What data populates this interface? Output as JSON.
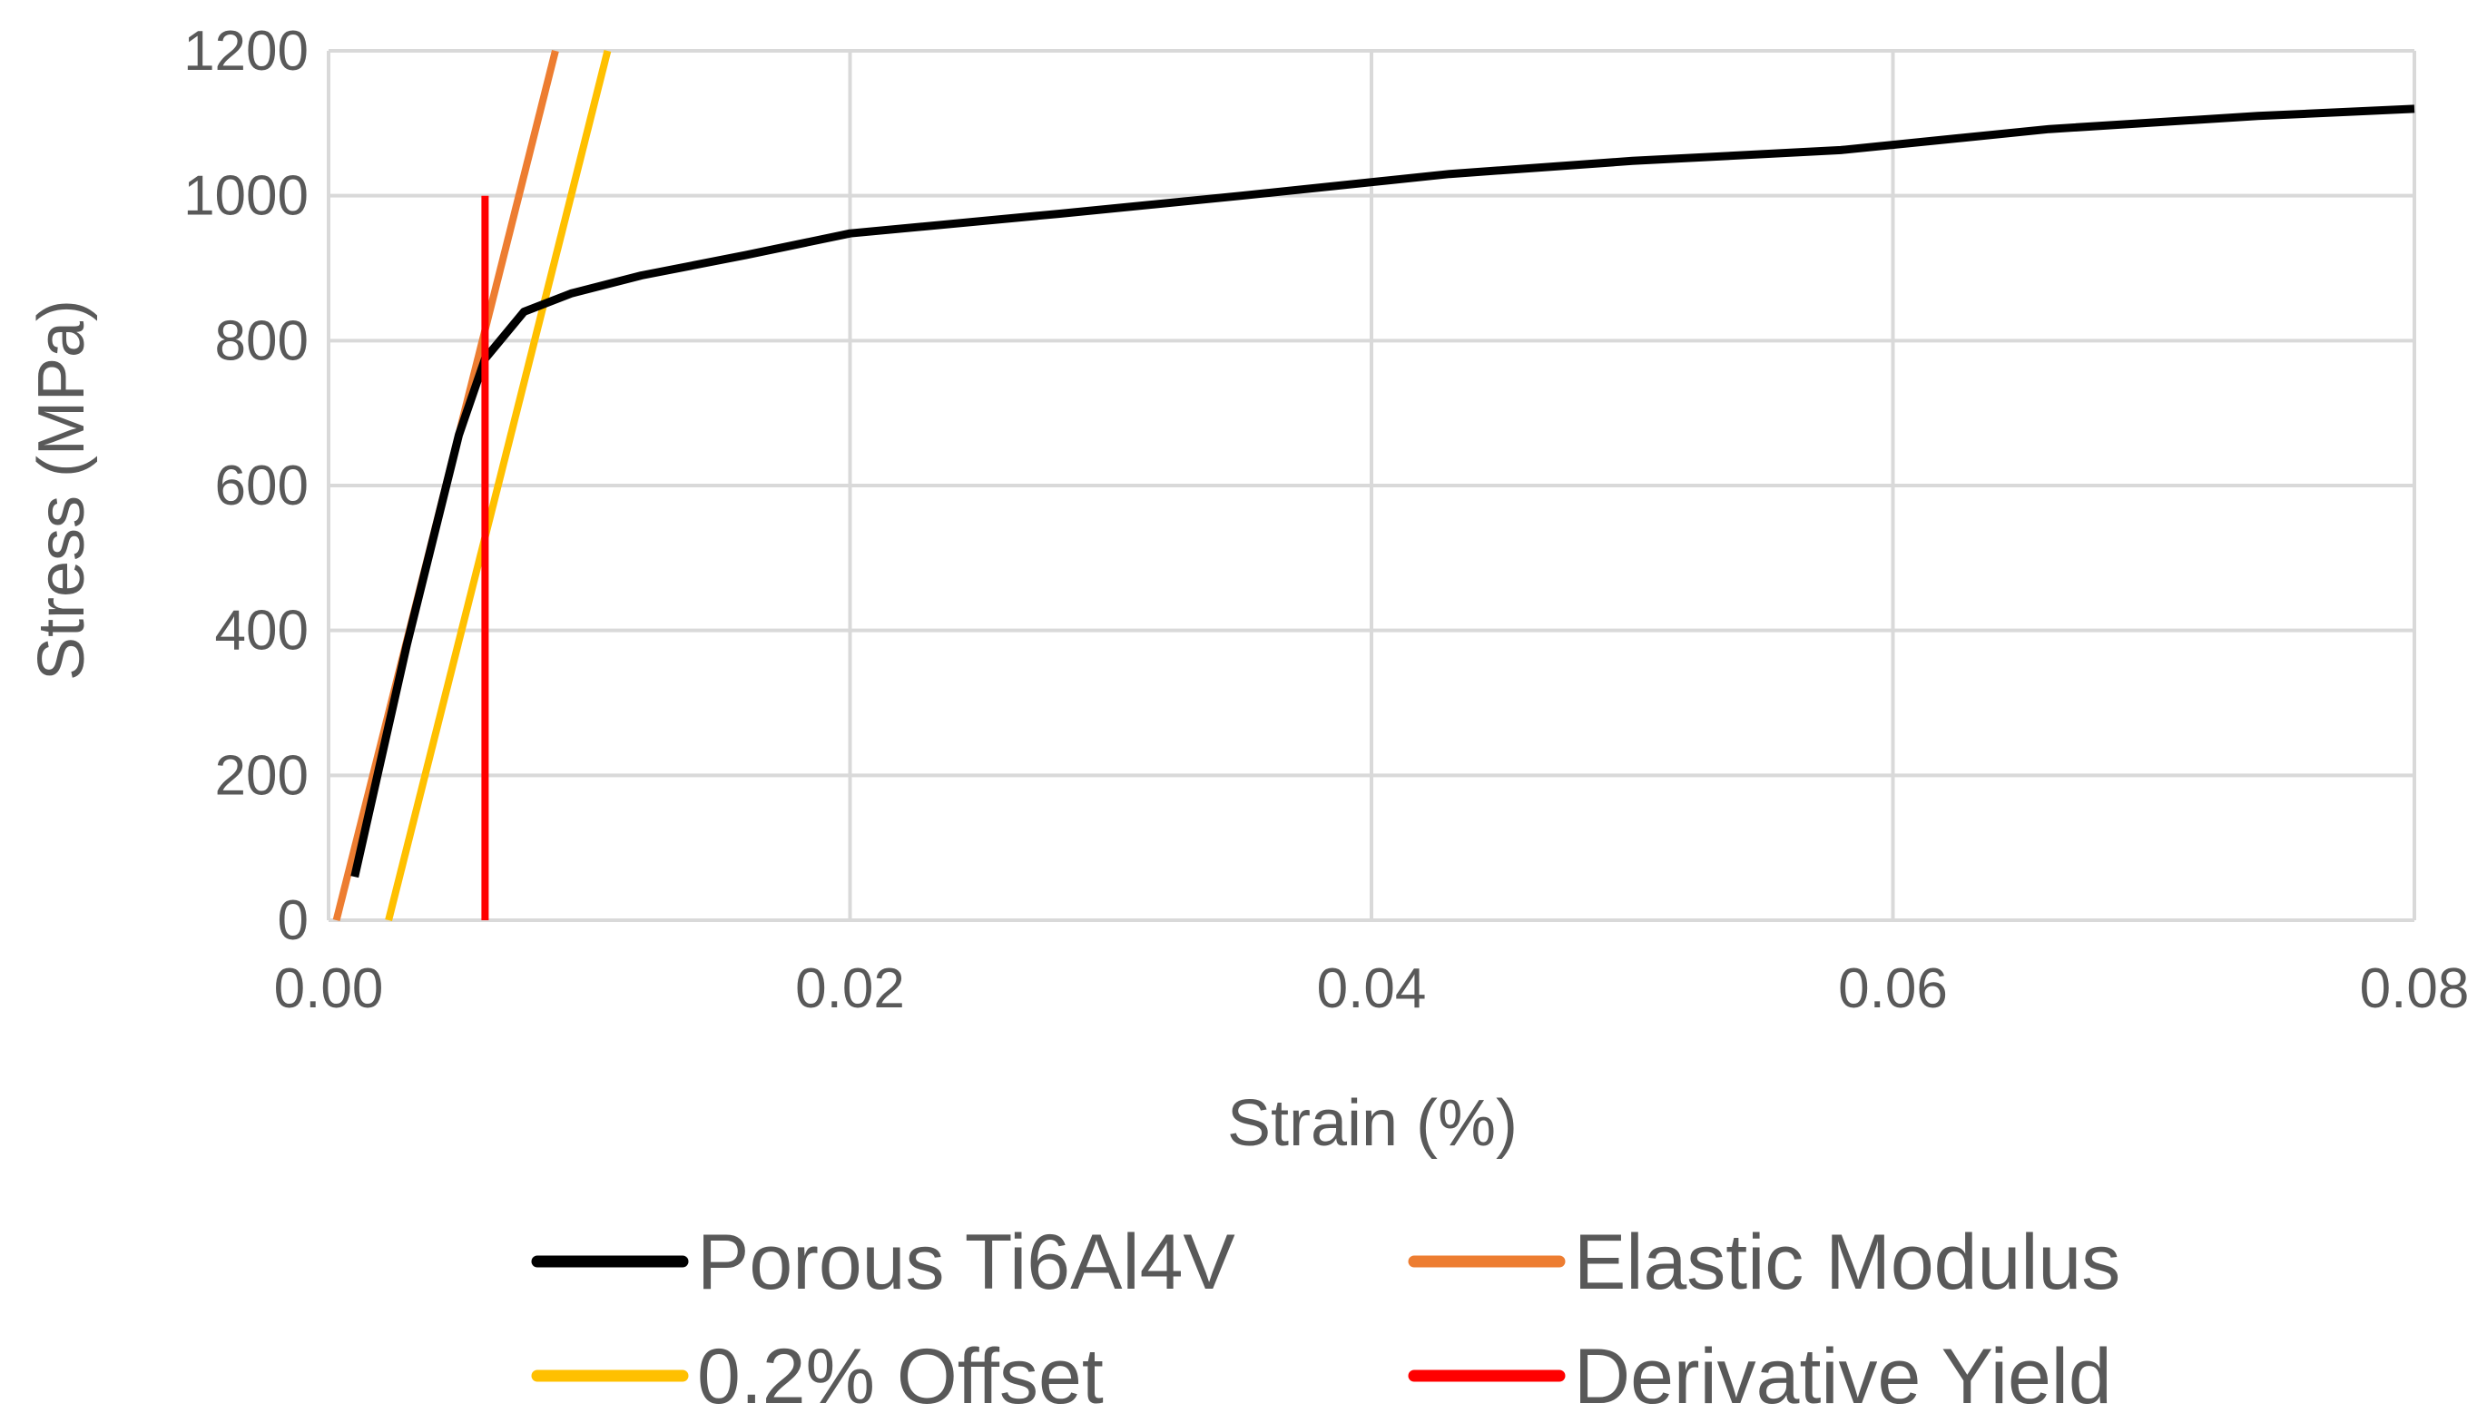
{
  "chart_data": {
    "type": "line",
    "title": "",
    "xlabel": "Strain (%)",
    "ylabel": "Stress (MPa)",
    "xlim": [
      0,
      0.08
    ],
    "ylim": [
      0,
      1200
    ],
    "x_ticks": [
      0,
      0.02,
      0.04,
      0.06,
      0.08
    ],
    "x_tick_labels": [
      "0.00",
      "0.02",
      "0.04",
      "0.06",
      "0.08"
    ],
    "y_ticks": [
      0,
      200,
      400,
      600,
      800,
      1000,
      1200
    ],
    "y_tick_labels": [
      "0",
      "200",
      "400",
      "600",
      "800",
      "1000",
      "1200"
    ],
    "grid": true,
    "legend_position": "bottom",
    "series": [
      {
        "name": "Porous Ti6Al4V",
        "color": "#000000",
        "x": [
          0.001,
          0.003,
          0.005,
          0.006,
          0.0075,
          0.0093,
          0.012,
          0.016,
          0.02,
          0.028,
          0.035,
          0.043,
          0.05,
          0.058,
          0.066,
          0.074,
          0.08
        ],
        "y": [
          60,
          380,
          670,
          775,
          840,
          865,
          890,
          918,
          948,
          975,
          1000,
          1030,
          1048,
          1063,
          1092,
          1110,
          1120
        ]
      },
      {
        "name": "Elastic Modulus",
        "color": "#ed7d31",
        "x": [
          0.0003,
          0.0087
        ],
        "y": [
          0,
          1200
        ]
      },
      {
        "name": "0.2% Offset",
        "color": "#ffc000",
        "x": [
          0.0023,
          0.0107
        ],
        "y": [
          0,
          1200
        ]
      },
      {
        "name": "Derivative Yield",
        "color": "#ff0000",
        "x": [
          0.006,
          0.006
        ],
        "y": [
          0,
          1000
        ]
      }
    ]
  }
}
